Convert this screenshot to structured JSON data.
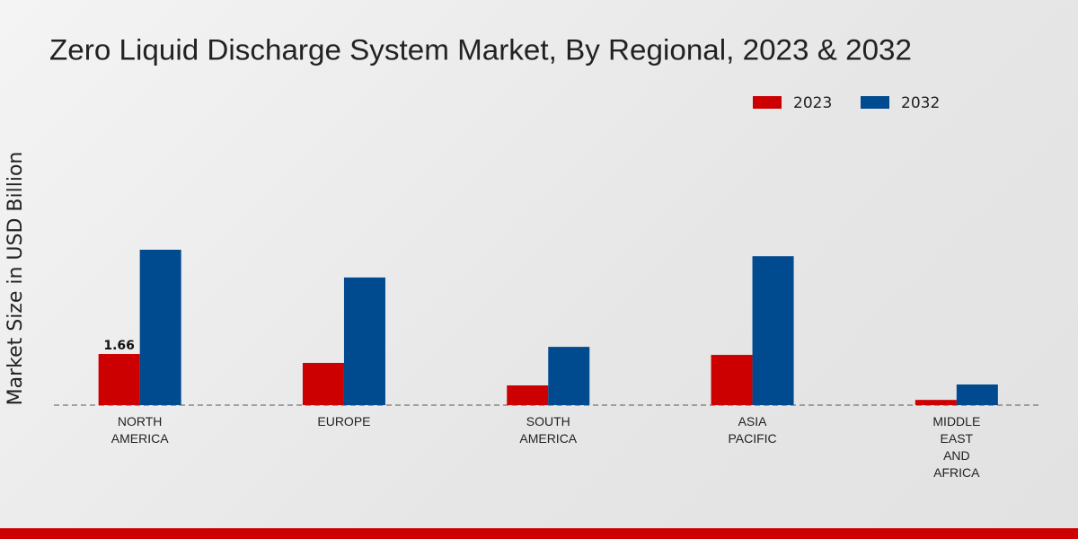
{
  "chart_data": {
    "type": "bar",
    "title": "Zero Liquid Discharge System Market, By Regional, 2023 & 2032",
    "y_label": "Market Size in USD Billion",
    "categories": [
      "NORTH AMERICA",
      "EUROPE",
      "SOUTH AMERICA",
      "ASIA PACIFIC",
      "MIDDLE EAST AND AFRICA"
    ],
    "series": [
      {
        "name": "2023",
        "color": "#cc0000",
        "values": [
          1.66,
          1.37,
          0.64,
          1.63,
          0.17
        ]
      },
      {
        "name": "2032",
        "color": "#004a8f",
        "values": [
          5.04,
          4.14,
          1.89,
          4.83,
          0.67
        ]
      }
    ],
    "labelled_points": [
      [
        0,
        0
      ]
    ]
  }
}
